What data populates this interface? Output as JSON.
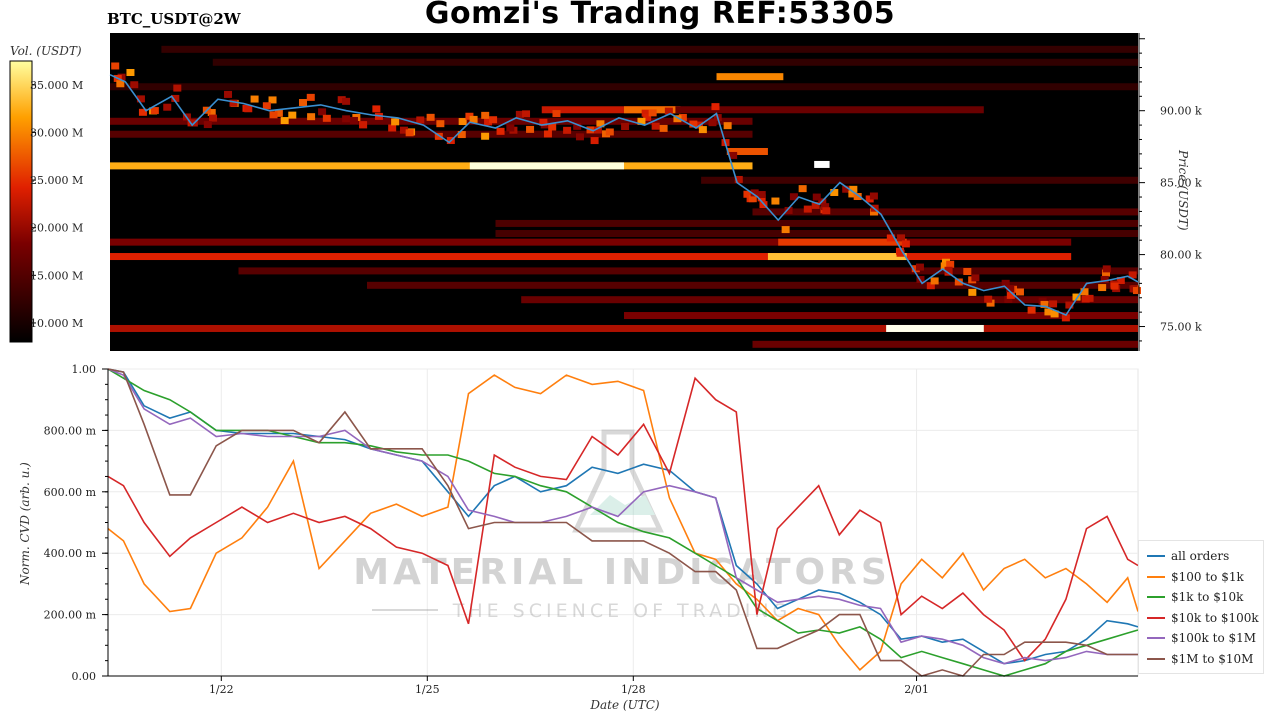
{
  "header": {
    "pair": "BTC_USDT@2W",
    "title": "Gomzi's Trading REF:53305"
  },
  "watermark": {
    "brand": "MATERIAL INDICATORS",
    "tagline": "THE SCIENCE OF TRADING"
  },
  "colors": {
    "price_line": "#3a8fd0",
    "heat_low": "#000000",
    "heat_high": "#ffffff"
  },
  "chart_data": [
    {
      "type": "heatmap",
      "ylabel": "Price (USDT)",
      "y_ticks": [
        {
          "value": 75000,
          "label": "75.00 k"
        },
        {
          "value": 80000,
          "label": "80.00 k"
        },
        {
          "value": 85000,
          "label": "85.00 k"
        },
        {
          "value": 90000,
          "label": "90.00 k"
        }
      ],
      "ylim": [
        73300,
        95400
      ],
      "colorbar": {
        "label": "Vol. (USDT)",
        "range": [
          8000000,
          37500000
        ],
        "ticks": [
          {
            "value": 10000000,
            "label": "10.000 M"
          },
          {
            "value": 15000000,
            "label": "15.000 M"
          },
          {
            "value": 20000000,
            "label": "20.000 M"
          },
          {
            "value": 25000000,
            "label": "25.000 M"
          },
          {
            "value": 30000000,
            "label": "30.000 M"
          },
          {
            "value": 35000000,
            "label": "35.000 M"
          }
        ]
      },
      "liquidity_bands": [
        {
          "price": 86200,
          "start_day": 0,
          "end_day": 12.5,
          "intensity": 0.82
        },
        {
          "price": 86200,
          "start_day": 7.0,
          "end_day": 10.0,
          "intensity": 0.98
        },
        {
          "price": 79900,
          "start_day": 0,
          "end_day": 18.7,
          "intensity": 0.55
        },
        {
          "price": 79900,
          "start_day": 12.8,
          "end_day": 15.5,
          "intensity": 0.85
        },
        {
          "price": 80900,
          "start_day": 0,
          "end_day": 18.7,
          "intensity": 0.35
        },
        {
          "price": 80900,
          "start_day": 13.0,
          "end_day": 15.5,
          "intensity": 0.6
        },
        {
          "price": 74900,
          "start_day": 0,
          "end_day": 20.0,
          "intensity": 0.45
        },
        {
          "price": 74900,
          "start_day": 15.1,
          "end_day": 17.0,
          "intensity": 0.99
        },
        {
          "price": 92400,
          "start_day": 11.8,
          "end_day": 13.1,
          "intensity": 0.75
        },
        {
          "price": 90100,
          "start_day": 8.4,
          "end_day": 11.0,
          "intensity": 0.5
        },
        {
          "price": 90100,
          "start_day": 10.0,
          "end_day": 11.1,
          "intensity": 0.7
        },
        {
          "price": 90100,
          "start_day": 11.0,
          "end_day": 17.0,
          "intensity": 0.3
        },
        {
          "price": 87200,
          "start_day": 12.0,
          "end_day": 12.8,
          "intensity": 0.65
        },
        {
          "price": 86300,
          "start_day": 13.7,
          "end_day": 14.0,
          "intensity": 1.0
        },
        {
          "price": 83000,
          "start_day": 12.5,
          "end_day": 20.0,
          "intensity": 0.25
        },
        {
          "price": 82200,
          "start_day": 7.5,
          "end_day": 20.0,
          "intensity": 0.22
        },
        {
          "price": 81500,
          "start_day": 7.5,
          "end_day": 20.0,
          "intensity": 0.2
        },
        {
          "price": 78900,
          "start_day": 2.5,
          "end_day": 20.0,
          "intensity": 0.25
        },
        {
          "price": 77900,
          "start_day": 5.0,
          "end_day": 20.0,
          "intensity": 0.25
        },
        {
          "price": 76900,
          "start_day": 8.0,
          "end_day": 20.0,
          "intensity": 0.3
        },
        {
          "price": 75800,
          "start_day": 10.0,
          "end_day": 20.0,
          "intensity": 0.35
        },
        {
          "price": 73800,
          "start_day": 12.5,
          "end_day": 20.0,
          "intensity": 0.3
        },
        {
          "price": 94300,
          "start_day": 1.0,
          "end_day": 20.0,
          "intensity": 0.15
        },
        {
          "price": 93400,
          "start_day": 2.0,
          "end_day": 20.0,
          "intensity": 0.14
        },
        {
          "price": 91700,
          "start_day": 0,
          "end_day": 20.0,
          "intensity": 0.14
        },
        {
          "price": 89300,
          "start_day": 0,
          "end_day": 12.5,
          "intensity": 0.3
        },
        {
          "price": 88400,
          "start_day": 0,
          "end_day": 12.5,
          "intensity": 0.25
        },
        {
          "price": 85200,
          "start_day": 11.5,
          "end_day": 20.0,
          "intensity": 0.18
        }
      ],
      "price_series": {
        "x_day": [
          0,
          0.3,
          0.7,
          1.2,
          1.6,
          2.1,
          2.6,
          3.1,
          3.6,
          4.1,
          4.6,
          5.1,
          5.6,
          6.1,
          6.6,
          7.0,
          7.5,
          7.9,
          8.4,
          8.9,
          9.4,
          9.9,
          10.4,
          10.9,
          11.4,
          11.8,
          12.2,
          12.6,
          13.0,
          13.4,
          13.8,
          14.2,
          14.6,
          15.0,
          15.4,
          15.8,
          16.2,
          16.6,
          17.0,
          17.4,
          17.8,
          18.2,
          18.6,
          19.0,
          19.4,
          19.8,
          20.0
        ],
        "y_price": [
          92500,
          92000,
          90000,
          91000,
          89000,
          90800,
          90500,
          90000,
          90200,
          90400,
          90000,
          89700,
          89500,
          89000,
          87800,
          89200,
          88800,
          89500,
          89000,
          89300,
          88600,
          89500,
          89000,
          89800,
          88800,
          89800,
          85000,
          84000,
          82400,
          84000,
          83500,
          85000,
          84000,
          82800,
          80300,
          78000,
          79000,
          78000,
          77500,
          77800,
          76500,
          76400,
          75800,
          78000,
          78200,
          78500,
          78100
        ]
      }
    },
    {
      "type": "line",
      "xlabel": "Date (UTC)",
      "ylabel": "Norm. CVD (arb. u.)",
      "ylim": [
        0,
        1
      ],
      "x_ticks": [
        {
          "day": 2.2,
          "label": "1/22"
        },
        {
          "day": 6.2,
          "label": "1/25"
        },
        {
          "day": 10.2,
          "label": "1/28"
        },
        {
          "day": 15.7,
          "label": "2/01"
        }
      ],
      "y_ticks": [
        {
          "value": 0,
          "label": "0.00"
        },
        {
          "value": 0.2,
          "label": "200.00 m"
        },
        {
          "value": 0.4,
          "label": "400.00 m"
        },
        {
          "value": 0.6,
          "label": "600.00 m"
        },
        {
          "value": 0.8,
          "label": "800.00 m"
        },
        {
          "value": 1.0,
          "label": "1.00"
        }
      ],
      "x": [
        0,
        0.3,
        0.7,
        1.2,
        1.6,
        2.1,
        2.6,
        3.1,
        3.6,
        4.1,
        4.6,
        5.1,
        5.6,
        6.1,
        6.6,
        7.0,
        7.5,
        7.9,
        8.4,
        8.9,
        9.4,
        9.9,
        10.4,
        10.9,
        11.4,
        11.8,
        12.2,
        12.6,
        13.0,
        13.4,
        13.8,
        14.2,
        14.6,
        15.0,
        15.4,
        15.8,
        16.2,
        16.6,
        17.0,
        17.4,
        17.8,
        18.2,
        18.6,
        19.0,
        19.4,
        19.8,
        20.0
      ],
      "series": [
        {
          "name": "all orders",
          "color": "#1f77b4",
          "values": [
            1.0,
            0.99,
            0.88,
            0.84,
            0.86,
            0.8,
            0.79,
            0.79,
            0.79,
            0.78,
            0.77,
            0.74,
            0.72,
            0.7,
            0.6,
            0.52,
            0.62,
            0.65,
            0.6,
            0.62,
            0.68,
            0.66,
            0.69,
            0.67,
            0.6,
            0.58,
            0.36,
            0.3,
            0.22,
            0.25,
            0.28,
            0.27,
            0.24,
            0.2,
            0.12,
            0.13,
            0.11,
            0.12,
            0.08,
            0.04,
            0.05,
            0.07,
            0.08,
            0.12,
            0.18,
            0.17,
            0.16
          ]
        },
        {
          "name": "$100 to $1k",
          "color": "#ff7f0e",
          "values": [
            0.48,
            0.44,
            0.3,
            0.21,
            0.22,
            0.4,
            0.45,
            0.55,
            0.7,
            0.35,
            0.44,
            0.53,
            0.56,
            0.52,
            0.55,
            0.92,
            0.98,
            0.94,
            0.92,
            0.98,
            0.95,
            0.96,
            0.93,
            0.58,
            0.4,
            0.38,
            0.3,
            0.25,
            0.18,
            0.22,
            0.2,
            0.1,
            0.02,
            0.08,
            0.3,
            0.38,
            0.32,
            0.4,
            0.28,
            0.35,
            0.38,
            0.32,
            0.35,
            0.3,
            0.24,
            0.32,
            0.21
          ]
        },
        {
          "name": "$1k to $10k",
          "color": "#2ca02c",
          "values": [
            1.0,
            0.97,
            0.93,
            0.9,
            0.86,
            0.8,
            0.8,
            0.8,
            0.78,
            0.76,
            0.76,
            0.75,
            0.73,
            0.72,
            0.72,
            0.7,
            0.66,
            0.65,
            0.62,
            0.6,
            0.55,
            0.5,
            0.47,
            0.45,
            0.4,
            0.36,
            0.32,
            0.22,
            0.18,
            0.14,
            0.15,
            0.14,
            0.16,
            0.12,
            0.06,
            0.08,
            0.06,
            0.04,
            0.02,
            0.0,
            0.02,
            0.04,
            0.08,
            0.1,
            0.12,
            0.14,
            0.15
          ]
        },
        {
          "name": "$10k to $100k",
          "color": "#d62728",
          "values": [
            0.65,
            0.62,
            0.5,
            0.39,
            0.45,
            0.5,
            0.55,
            0.5,
            0.53,
            0.5,
            0.52,
            0.48,
            0.42,
            0.4,
            0.36,
            0.17,
            0.72,
            0.68,
            0.65,
            0.64,
            0.78,
            0.72,
            0.82,
            0.66,
            0.97,
            0.9,
            0.86,
            0.2,
            0.48,
            0.55,
            0.62,
            0.46,
            0.54,
            0.5,
            0.2,
            0.26,
            0.22,
            0.27,
            0.2,
            0.15,
            0.05,
            0.12,
            0.25,
            0.48,
            0.52,
            0.38,
            0.36
          ]
        },
        {
          "name": "$100k to $1M",
          "color": "#9467bd",
          "values": [
            1.0,
            0.98,
            0.87,
            0.82,
            0.84,
            0.78,
            0.79,
            0.78,
            0.78,
            0.78,
            0.8,
            0.74,
            0.72,
            0.7,
            0.65,
            0.54,
            0.52,
            0.5,
            0.5,
            0.52,
            0.55,
            0.52,
            0.6,
            0.62,
            0.6,
            0.58,
            0.32,
            0.28,
            0.24,
            0.25,
            0.26,
            0.25,
            0.23,
            0.22,
            0.11,
            0.13,
            0.12,
            0.1,
            0.06,
            0.04,
            0.06,
            0.05,
            0.06,
            0.08,
            0.07,
            0.07,
            0.07
          ]
        },
        {
          "name": "$1M to $10M",
          "color": "#8c564b",
          "values": [
            1.0,
            0.99,
            0.82,
            0.59,
            0.59,
            0.75,
            0.8,
            0.8,
            0.8,
            0.76,
            0.86,
            0.74,
            0.74,
            0.74,
            0.62,
            0.48,
            0.5,
            0.5,
            0.5,
            0.5,
            0.44,
            0.44,
            0.44,
            0.4,
            0.34,
            0.34,
            0.28,
            0.09,
            0.09,
            0.12,
            0.15,
            0.2,
            0.2,
            0.05,
            0.05,
            0.0,
            0.02,
            0.0,
            0.07,
            0.07,
            0.11,
            0.11,
            0.11,
            0.1,
            0.07,
            0.07,
            0.07
          ]
        }
      ],
      "legend_placement": "bottom-right",
      "grid": true
    }
  ]
}
